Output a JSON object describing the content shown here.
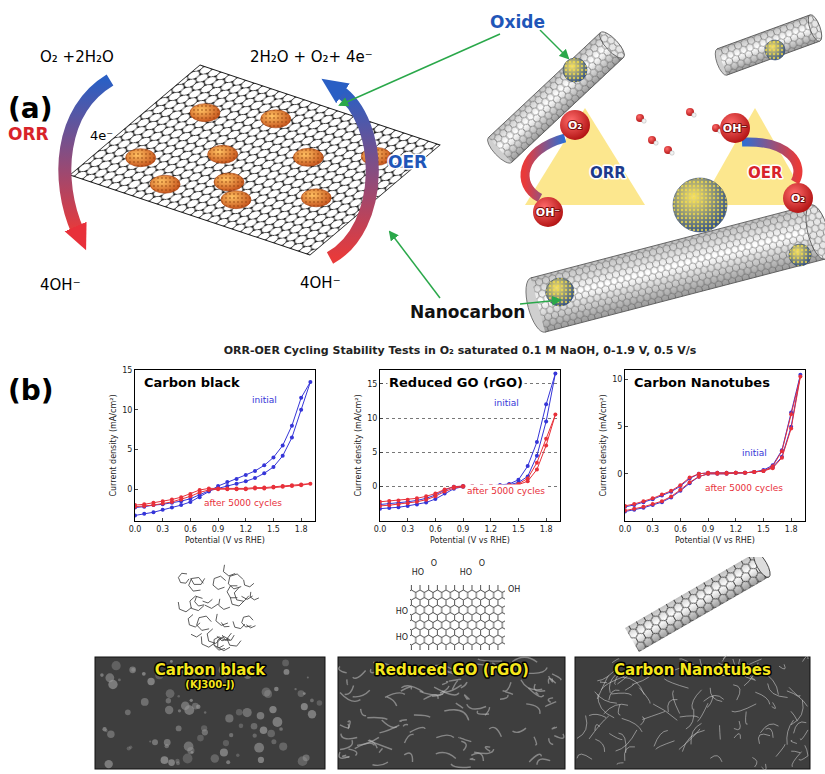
{
  "diagram_a": {
    "label": "(a)",
    "left_reaction_in": "O₂ +2H₂O",
    "electrons": "4e⁻",
    "orr": "ORR",
    "left_reaction_out": "4OH⁻",
    "right_reaction_out": "2H₂O + O₂+ 4e⁻",
    "oer": "OER",
    "right_reaction_in": "4OH⁻",
    "oxide": "Oxide",
    "nanocarbon": "Nanocarbon",
    "cycle": {
      "orr": "ORR",
      "oer": "OER",
      "o2": "O₂",
      "oh": "OH⁻"
    }
  },
  "panel_b": {
    "label": "(b)",
    "title": "ORR-OER Cycling Stability Tests in O₂ saturated 0.1 M NaOH, 0-1.9 V, 0.5 V/s",
    "rgo_groups": [
      "HO",
      "O",
      "HO",
      "O",
      "OH",
      "HO",
      "HO"
    ],
    "sem_labels": [
      {
        "title": "Carbon black",
        "subtitle": "(KJ300-J)"
      },
      {
        "title": "Reduced GO (rGO)"
      },
      {
        "title": "Carbon Nanotubes"
      }
    ]
  },
  "chart_data": [
    {
      "type": "line",
      "title": "Carbon black",
      "x_label": "Potential (V vs RHE)",
      "y_label": "Current density (mA/cm²)",
      "x": [
        0,
        0.1,
        0.2,
        0.3,
        0.4,
        0.5,
        0.6,
        0.7,
        0.8,
        0.9,
        1.0,
        1.1,
        1.2,
        1.3,
        1.4,
        1.5,
        1.6,
        1.7,
        1.8,
        1.9,
        1.8,
        1.7,
        1.6,
        1.5,
        1.4,
        1.3,
        1.2,
        1.1,
        1.0,
        0.9,
        0.8,
        0.7,
        0.6,
        0.5,
        0.4,
        0.3,
        0.2,
        0.1,
        0
      ],
      "series": [
        {
          "name": "initial",
          "color": "#3535d8",
          "values": [
            -2.3,
            -2.2,
            -2.0,
            -1.9,
            -1.7,
            -1.5,
            -1.2,
            -0.7,
            -0.2,
            0.1,
            0.4,
            0.7,
            1.0,
            1.4,
            2.0,
            2.8,
            4.2,
            6.5,
            10.0,
            13.5,
            11.5,
            8.0,
            5.5,
            4.0,
            3.0,
            2.3,
            1.8,
            1.3,
            0.9,
            0.4,
            -0.3,
            -1.0,
            -1.6,
            -2.0,
            -2.3,
            -2.6,
            -2.9,
            -3.1,
            -3.3
          ]
        },
        {
          "name": "after 5000 cycles",
          "color": "#e8303a",
          "values": [
            -2.0,
            -1.9,
            -1.7,
            -1.5,
            -1.3,
            -1.0,
            -0.6,
            -0.1,
            0.1,
            0.1,
            0.1,
            0.1,
            0.1,
            0.2,
            0.2,
            0.3,
            0.4,
            0.5,
            0.6,
            0.7,
            0.5,
            0.4,
            0.3,
            0.2,
            0.1,
            0.1,
            0.0,
            0.0,
            0.0,
            0.0,
            -0.1,
            -0.4,
            -0.9,
            -1.3,
            -1.6,
            -1.8,
            -2.0,
            -2.1,
            -2.2
          ]
        }
      ],
      "marker": "circle",
      "xlim": [
        0,
        1.95
      ],
      "xticks": [
        {
          "value": 0,
          "label": "0.0"
        },
        0.3,
        0.6,
        0.9,
        1.2,
        1.5,
        1.8
      ],
      "ylim": [
        -4,
        15
      ],
      "yticks": [
        0,
        5,
        10,
        15
      ],
      "grid": false
    },
    {
      "type": "line",
      "title": "Reduced GO (rGO)",
      "x_label": "Potential (V vs RHE)",
      "y_label": "Current density (mA/cm²)",
      "x": [
        0,
        0.1,
        0.2,
        0.3,
        0.4,
        0.5,
        0.6,
        0.7,
        0.8,
        0.9,
        1.0,
        1.1,
        1.2,
        1.3,
        1.4,
        1.5,
        1.6,
        1.7,
        1.8,
        1.9,
        1.8,
        1.7,
        1.6,
        1.5,
        1.4,
        1.3,
        1.2,
        1.1,
        1.0,
        0.9,
        0.8,
        0.7,
        0.6,
        0.5,
        0.4,
        0.3,
        0.2,
        0.1,
        0
      ],
      "series": [
        {
          "name": "initial",
          "color": "#3535d8",
          "values": [
            -2.6,
            -2.5,
            -2.4,
            -2.2,
            -2.0,
            -1.7,
            -1.2,
            -0.5,
            0.0,
            0.1,
            0.1,
            0.1,
            0.1,
            0.2,
            0.3,
            0.6,
            1.5,
            4.5,
            9.5,
            16.5,
            12.0,
            6.5,
            3.0,
            1.0,
            0.4,
            0.2,
            0.1,
            0.1,
            0.0,
            0.0,
            -0.3,
            -1.0,
            -1.8,
            -2.3,
            -2.6,
            -2.8,
            -3.0,
            -3.1,
            -3.2
          ]
        },
        {
          "name": "after 5000 cycles",
          "color": "#e8303a",
          "values": [
            -2.2,
            -2.1,
            -2.0,
            -1.9,
            -1.7,
            -1.4,
            -1.0,
            -0.4,
            0.0,
            0.1,
            0.1,
            0.1,
            0.1,
            0.1,
            0.2,
            0.3,
            0.8,
            2.5,
            6.0,
            10.5,
            7.0,
            3.5,
            1.2,
            0.4,
            0.2,
            0.1,
            0.1,
            0.0,
            0.0,
            0.0,
            -0.2,
            -0.7,
            -1.4,
            -1.9,
            -2.2,
            -2.4,
            -2.6,
            -2.7,
            -2.8
          ]
        }
      ],
      "marker": "circle",
      "xlim": [
        0,
        1.95
      ],
      "xticks": [
        {
          "value": 0,
          "label": "0.0"
        },
        0.3,
        0.6,
        0.9,
        1.2,
        1.5,
        1.8
      ],
      "ylim": [
        -5,
        17
      ],
      "yticks": [
        0,
        5,
        10,
        15
      ],
      "grid": true
    },
    {
      "type": "line",
      "title": "Carbon Nanotubes",
      "x_label": "Potential (V vs RHE)",
      "y_label": "Current density (mA/cm²)",
      "x": [
        0,
        0.1,
        0.2,
        0.3,
        0.4,
        0.5,
        0.6,
        0.7,
        0.8,
        0.9,
        1.0,
        1.1,
        1.2,
        1.3,
        1.4,
        1.5,
        1.6,
        1.7,
        1.8,
        1.9,
        1.8,
        1.7,
        1.6,
        1.5,
        1.4,
        1.3,
        1.2,
        1.1,
        1.0,
        0.9,
        0.8,
        0.7,
        0.6,
        0.5,
        0.4,
        0.3,
        0.2,
        0.1,
        0
      ],
      "series": [
        {
          "name": "initial",
          "color": "#3535d8",
          "values": [
            -3.5,
            -3.3,
            -3.0,
            -2.7,
            -2.3,
            -1.9,
            -1.3,
            -0.5,
            0.0,
            0.1,
            0.1,
            0.1,
            0.1,
            0.1,
            0.2,
            0.3,
            0.7,
            1.8,
            5.0,
            10.5,
            6.5,
            2.5,
            0.9,
            0.4,
            0.2,
            0.1,
            0.1,
            0.0,
            0.0,
            0.0,
            -0.3,
            -1.0,
            -1.8,
            -2.5,
            -3.0,
            -3.3,
            -3.6,
            -3.8,
            -4.0
          ]
        },
        {
          "name": "after 5000 cycles",
          "color": "#e8303a",
          "values": [
            -3.4,
            -3.2,
            -2.9,
            -2.6,
            -2.2,
            -1.8,
            -1.2,
            -0.4,
            0.0,
            0.1,
            0.1,
            0.1,
            0.1,
            0.1,
            0.2,
            0.3,
            0.6,
            1.7,
            4.8,
            10.3,
            6.3,
            2.4,
            0.8,
            0.3,
            0.2,
            0.1,
            0.1,
            0.0,
            0.0,
            0.0,
            -0.3,
            -0.9,
            -1.7,
            -2.4,
            -2.9,
            -3.2,
            -3.5,
            -3.7,
            -3.9
          ]
        }
      ],
      "marker": "circle",
      "xlim": [
        0,
        1.95
      ],
      "xticks": [
        {
          "value": 0,
          "label": "0.0"
        },
        0.3,
        0.6,
        0.9,
        1.2,
        1.5,
        1.8
      ],
      "ylim": [
        -5,
        11
      ],
      "yticks": [
        0,
        5,
        10
      ],
      "grid": false
    }
  ]
}
